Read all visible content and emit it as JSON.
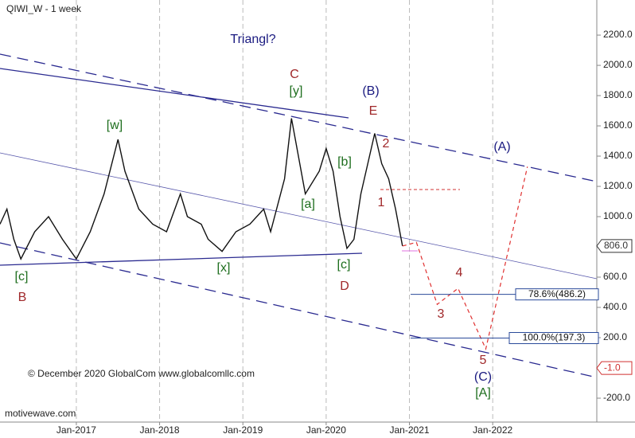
{
  "chart_data": {
    "type": "line",
    "title": "QIWI_W - 1 week",
    "copyright": "© December 2020 GlobalCom www.globalcomllc.com",
    "watermark": "motivewave.com",
    "annotations": [
      "Triangl?",
      "C",
      "[y]",
      "(B)",
      "E",
      "[w]",
      "2",
      "[b]",
      "(A)",
      "1",
      "[a]",
      "[x]",
      "[c]",
      "D",
      "[c]",
      "B",
      "4",
      "3",
      "5",
      "(C)",
      "[A]"
    ],
    "series": [
      {
        "color": "#111111",
        "dashed": false,
        "x": [
          "2016-02",
          "2016-03",
          "2016-04",
          "2016-05",
          "2016-07",
          "2016-09",
          "2016-11",
          "2017-01",
          "2017-03",
          "2017-05",
          "2017-07",
          "2017-08",
          "2017-10",
          "2017-12",
          "2018-02",
          "2018-04",
          "2018-05",
          "2018-07",
          "2018-08",
          "2018-10",
          "2018-12",
          "2019-02",
          "2019-04",
          "2019-05",
          "2019-07",
          "2019-08",
          "2019-09",
          "2019-10",
          "2019-12",
          "2020-01",
          "2020-02",
          "2020-03",
          "2020-04",
          "2020-05",
          "2020-06",
          "2020-07",
          "2020-08",
          "2020-09",
          "2020-10",
          "2020-11",
          "2020-12"
        ],
        "values": [
          950,
          1050,
          850,
          720,
          900,
          1000,
          850,
          720,
          900,
          1150,
          1510,
          1300,
          1050,
          950,
          900,
          1150,
          1000,
          950,
          850,
          770,
          900,
          950,
          1050,
          900,
          1250,
          1650,
          1400,
          1150,
          1300,
          1450,
          1300,
          1000,
          790,
          850,
          1150,
          1350,
          1550,
          1350,
          1250,
          1050,
          806
        ]
      },
      {
        "color": "#e03030",
        "dashed": true,
        "x": [
          "2020-12",
          "2021-02",
          "2021-05",
          "2021-08",
          "2021-12",
          "2022-06"
        ],
        "values": [
          806,
          830,
          420,
          526,
          126,
          1330
        ]
      }
    ],
    "xlim": [
      "2016-02",
      "2023-04"
    ],
    "xticks": [
      {
        "value": "2017-01",
        "label": "Jan-2017"
      },
      {
        "value": "2018-01",
        "label": "Jan-2018"
      },
      {
        "value": "2019-01",
        "label": "Jan-2019"
      },
      {
        "value": "2020-01",
        "label": "Jan-2020"
      },
      {
        "value": "2021-01",
        "label": "Jan-2021"
      },
      {
        "value": "2022-01",
        "label": "Jan-2022"
      }
    ],
    "ylim": [
      -358,
      2432
    ],
    "yticks": [
      {
        "value": 2200,
        "label": "2200.0"
      },
      {
        "value": 2000,
        "label": "2000.0"
      },
      {
        "value": 1800,
        "label": "1800.0"
      },
      {
        "value": 1600,
        "label": "1600.0"
      },
      {
        "value": 1400,
        "label": "1400.0"
      },
      {
        "value": 1200,
        "label": "1200.0"
      },
      {
        "value": 1000,
        "label": "1000.0"
      },
      {
        "value": 600,
        "label": "600.0"
      },
      {
        "value": 400,
        "label": "400.0"
      },
      {
        "value": 200,
        "label": "200.0"
      },
      {
        "value": -200,
        "label": "-200.0"
      }
    ],
    "price_markers": [
      {
        "value": 806,
        "label": "806.0",
        "color": "#333333"
      },
      {
        "value": -1,
        "label": "-1.0",
        "color": "#d03030"
      }
    ],
    "fib_levels": [
      {
        "value": 486.2,
        "label": "78.6%(486.2)"
      },
      {
        "value": 197.3,
        "label": "100.0%(197.3)"
      }
    ],
    "grid": true
  }
}
